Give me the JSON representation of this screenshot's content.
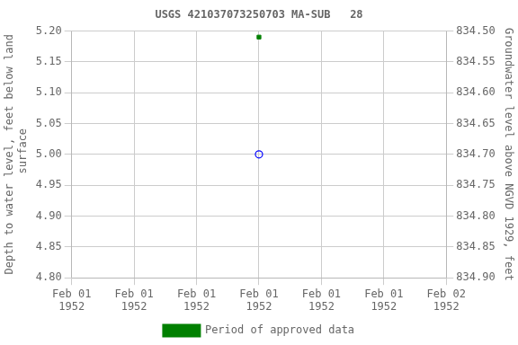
{
  "chart_data": {
    "type": "scatter",
    "title": "USGS 421037073250703 MA-SUB   28",
    "ylabel": "Depth to water level, feet below land\n surface",
    "y2label": "Groundwater level above NGVD 1929, feet",
    "categories": [
      "Feb 01\n1952",
      "Feb 01\n1952",
      "Feb 01\n1952",
      "Feb 01\n1952",
      "Feb 01\n1952",
      "Feb 01\n1952",
      "Feb 02\n1952"
    ],
    "series": [
      {
        "color": "#0000ff",
        "marker": "open_circle",
        "values": [
          null,
          null,
          null,
          5.0,
          null,
          null,
          null
        ]
      },
      {
        "name": "Period of approved data",
        "color": "#008000",
        "marker": "square",
        "values": [
          null,
          null,
          null,
          5.19,
          null,
          null,
          null
        ]
      }
    ],
    "ylim": [
      4.8,
      5.2
    ],
    "yticks": [
      {
        "value": 4.8,
        "label": "4.80"
      },
      4.85,
      {
        "value": 4.9,
        "label": "4.90"
      },
      4.95,
      {
        "value": 5.0,
        "label": "5.00"
      },
      5.05,
      {
        "value": 5.1,
        "label": "5.10"
      },
      5.15,
      {
        "value": 5.2,
        "label": "5.20"
      }
    ],
    "y2lim": [
      834.9,
      834.5
    ],
    "y2ticks": [
      {
        "value": 834.9,
        "label": "834.90"
      },
      834.85,
      {
        "value": 834.8,
        "label": "834.80"
      },
      834.75,
      {
        "value": 834.7,
        "label": "834.70"
      },
      834.65,
      {
        "value": 834.6,
        "label": "834.60"
      },
      834.55,
      {
        "value": 834.5,
        "label": "834.50"
      }
    ],
    "grid": true,
    "legend": "bottom"
  }
}
